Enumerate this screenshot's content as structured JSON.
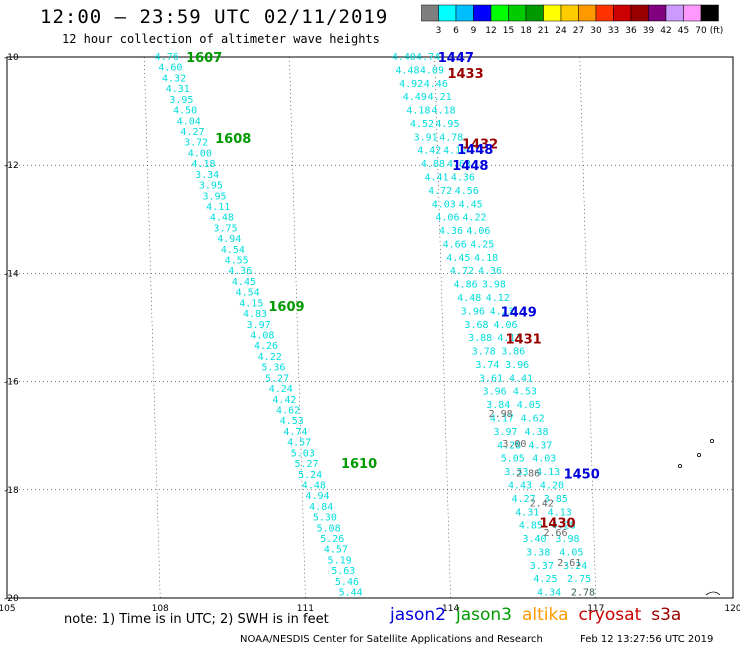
{
  "header": {
    "title": "12:00 — 23:59 UTC 02/11/2019",
    "subtitle": "12 hour collection of altimeter wave heights"
  },
  "colorbar": {
    "unit": "(ft)",
    "ticks": [
      "3",
      "6",
      "9",
      "12",
      "15",
      "18",
      "21",
      "24",
      "27",
      "30",
      "33",
      "36",
      "39",
      "42",
      "45",
      "70"
    ],
    "colors": [
      "#7f7f7f",
      "#00ffff",
      "#00bfff",
      "#0000ff",
      "#00ff00",
      "#00cc00",
      "#009900",
      "#ffff00",
      "#ffcc00",
      "#ff9900",
      "#ff3300",
      "#cc0000",
      "#990000",
      "#800080",
      "#cc99ff",
      "#ff99ff",
      "#000000"
    ]
  },
  "footer": {
    "note": "note: 1) Time is in UTC; 2) SWH is in feet",
    "credit": "NOAA/NESDIS Center for Satellite Applications and Research",
    "timestamp": "Feb 12 13:27:56 UTC 2019"
  },
  "legend": [
    {
      "label": "jason2",
      "color": "#0000dd"
    },
    {
      "label": "jason3",
      "color": "#009900"
    },
    {
      "label": "altika",
      "color": "#ff9900"
    },
    {
      "label": "cryosat",
      "color": "#cc0000"
    },
    {
      "label": "s3a",
      "color": "#990000"
    }
  ],
  "chart_data": {
    "type": "scatter",
    "xlim": [
      105,
      120
    ],
    "ylim": [
      -20,
      -10
    ],
    "xticks": [
      "105",
      "108",
      "111",
      "114",
      "117",
      "120"
    ],
    "yticks": [
      "-10",
      "-12",
      "-14",
      "-16",
      "-18",
      "-20"
    ],
    "grid": true,
    "tracks": [
      {
        "name": "jason3",
        "color": "#00dddd",
        "start": [
          108.3,
          -10.0
        ],
        "end": [
          112.1,
          -19.9
        ],
        "values": [
          "4.76",
          "4.60",
          "4.32",
          "4.31",
          "3.95",
          "4.50",
          "4.04",
          "4.27",
          "3.72",
          "4.00",
          "4.18",
          "3.34",
          "3.95",
          "3.95",
          "4.11",
          "4.48",
          "3.75",
          "4.94",
          "4.54",
          "4.55",
          "4.36",
          "4.45",
          "4.54",
          "4.15",
          "4.83",
          "3.97",
          "4.08",
          "4.26",
          "4.22",
          "5.36",
          "5.27",
          "4.24",
          "4.42",
          "4.62",
          "4.53",
          "4.74",
          "4.57",
          "5.03",
          "5.27",
          "5.24",
          "4.48",
          "4.94",
          "4.84",
          "5.30",
          "5.08",
          "5.26",
          "4.57",
          "5.19",
          "5.63",
          "5.46",
          "5.44"
        ]
      },
      {
        "name": "jason2 A",
        "color": "#00dddd",
        "start": [
          113.2,
          -10.0
        ],
        "end": [
          116.2,
          -19.9
        ],
        "values": [
          "4.40",
          "4.48",
          "4.92",
          "4.49",
          "4.18",
          "4.52",
          "3.91",
          "4.42",
          "4.88",
          "4.41",
          "4.72",
          "4.03",
          "4.06",
          "4.36",
          "4.66",
          "4.45",
          "4.72",
          "4.86",
          "4.48",
          "3.96",
          "3.68",
          "3.88",
          "3.78",
          "3.74",
          "3.61",
          "3.96",
          "3.84",
          "4.17",
          "3.97",
          "4.28",
          "5.05",
          "3.33",
          "4.43",
          "4.27",
          "4.31",
          "4.85",
          "3.40",
          "3.38",
          "3.37",
          "4.25",
          "4.34"
        ]
      },
      {
        "name": "jason2 B",
        "color": "#00dddd",
        "start": [
          113.7,
          -10.0
        ],
        "end": [
          116.9,
          -19.9
        ],
        "values": [
          "4.74",
          "4.09",
          "4.46",
          "4.21",
          "4.18",
          "4.95",
          "4.78",
          "4.12",
          "4.63",
          "4.36",
          "4.56",
          "4.45",
          "4.22",
          "4.06",
          "4.25",
          "4.18",
          "4.36",
          "3.98",
          "4.12",
          "4.23",
          "4.06",
          "4.13",
          "3.86",
          "3.96",
          "4.41",
          "4.53",
          "4.05",
          "4.62",
          "4.38",
          "4.37",
          "4.03",
          "4.13",
          "4.20",
          "3.85",
          "4.13",
          "4.28",
          "3.98",
          "4.05",
          "3.24",
          "2.75",
          "2.78"
        ]
      },
      {
        "name": "grey",
        "color": "#666666",
        "start": [
          115.2,
          -16.6
        ],
        "end": [
          116.9,
          -19.9
        ],
        "values": [
          "2.98",
          "3.00",
          "2.86",
          "2.42",
          "2.66",
          "2.61",
          "2.78"
        ]
      }
    ],
    "passes": [
      {
        "label": "1607",
        "color": "#009900",
        "x": 108.7,
        "y": -10.0
      },
      {
        "label": "1608",
        "color": "#009900",
        "x": 109.3,
        "y": -11.5
      },
      {
        "label": "1609",
        "color": "#009900",
        "x": 110.4,
        "y": -14.6
      },
      {
        "label": "1610",
        "color": "#009900",
        "x": 111.9,
        "y": -17.5
      },
      {
        "label": "1447",
        "color": "#0000dd",
        "x": 113.9,
        "y": -10.0
      },
      {
        "label": "1433",
        "color": "#990000",
        "x": 114.1,
        "y": -10.3
      },
      {
        "label": "1432",
        "color": "#990000",
        "x": 114.4,
        "y": -11.6
      },
      {
        "label": "1448",
        "color": "#0000dd",
        "x": 114.3,
        "y": -11.7
      },
      {
        "label": "1448",
        "color": "#0000dd",
        "x": 114.2,
        "y": -12.0
      },
      {
        "label": "1449",
        "color": "#0000dd",
        "x": 115.2,
        "y": -14.7
      },
      {
        "label": "1431",
        "color": "#990000",
        "x": 115.3,
        "y": -15.2
      },
      {
        "label": "1450",
        "color": "#0000dd",
        "x": 116.5,
        "y": -17.7
      },
      {
        "label": "1430",
        "color": "#990000",
        "x": 116.0,
        "y": -18.6
      }
    ]
  }
}
